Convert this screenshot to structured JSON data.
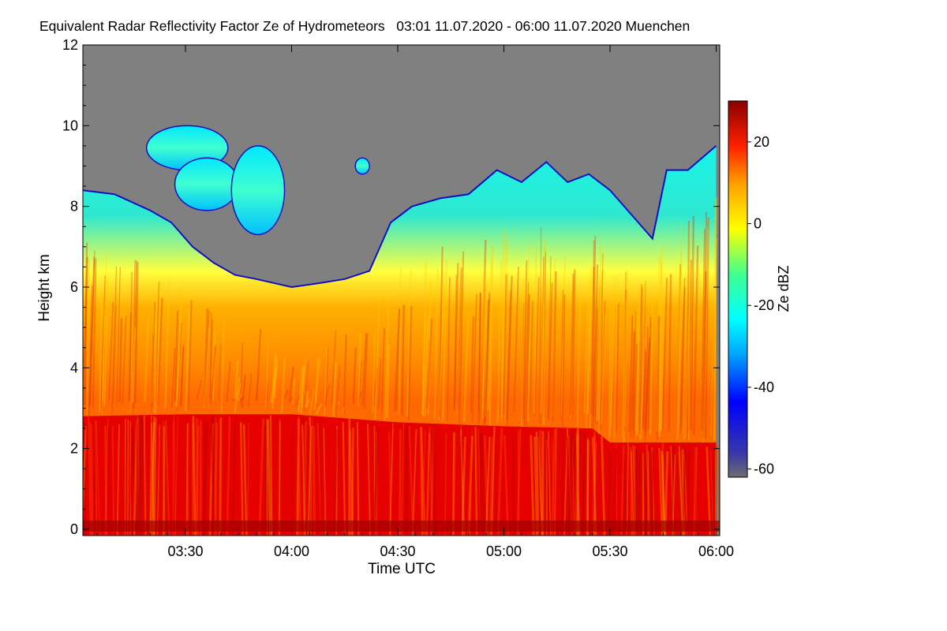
{
  "chart_data": {
    "type": "heatmap",
    "title": "Equivalent Radar Reflectivity Factor Ze of Hydrometeors   03:01 11.07.2020 - 06:00 11.07.2020 Muenchen",
    "xlabel": "Time UTC",
    "ylabel": "Height km",
    "x_range": [
      "03:01",
      "06:00"
    ],
    "xlim_minutes": [
      181,
      361
    ],
    "ylim": [
      0,
      12
    ],
    "x_ticks": [
      {
        "label": "03:30",
        "minutes": 210
      },
      {
        "label": "04:00",
        "minutes": 240
      },
      {
        "label": "04:30",
        "minutes": 270
      },
      {
        "label": "05:00",
        "minutes": 300
      },
      {
        "label": "05:30",
        "minutes": 330
      },
      {
        "label": "06:00",
        "minutes": 360
      }
    ],
    "y_ticks": [
      0,
      2,
      4,
      6,
      8,
      10,
      12
    ],
    "colorbar": {
      "label": "Ze dBZ",
      "range": [
        -62,
        30
      ],
      "ticks": [
        -60,
        -40,
        -20,
        0,
        20
      ]
    },
    "background_color": "#808080",
    "melting_layer_top_km": [
      {
        "t": 181,
        "h": 2.8
      },
      {
        "t": 210,
        "h": 2.85
      },
      {
        "t": 240,
        "h": 2.85
      },
      {
        "t": 270,
        "h": 2.65
      },
      {
        "t": 300,
        "h": 2.55
      },
      {
        "t": 325,
        "h": 2.5
      },
      {
        "t": 330,
        "h": 2.15
      },
      {
        "t": 360,
        "h": 2.15
      }
    ],
    "cloud_top_km": [
      {
        "t": 181,
        "h": 8.4
      },
      {
        "t": 190,
        "h": 8.3
      },
      {
        "t": 200,
        "h": 7.9
      },
      {
        "t": 206,
        "h": 7.6
      },
      {
        "t": 212,
        "h": 7.0
      },
      {
        "t": 218,
        "h": 6.6
      },
      {
        "t": 224,
        "h": 6.3
      },
      {
        "t": 230,
        "h": 6.2
      },
      {
        "t": 240,
        "h": 6.0
      },
      {
        "t": 248,
        "h": 6.1
      },
      {
        "t": 255,
        "h": 6.2
      },
      {
        "t": 262,
        "h": 6.4
      },
      {
        "t": 268,
        "h": 7.6
      },
      {
        "t": 274,
        "h": 8.0
      },
      {
        "t": 282,
        "h": 8.2
      },
      {
        "t": 290,
        "h": 8.3
      },
      {
        "t": 298,
        "h": 8.9
      },
      {
        "t": 305,
        "h": 8.6
      },
      {
        "t": 312,
        "h": 9.1
      },
      {
        "t": 318,
        "h": 8.6
      },
      {
        "t": 324,
        "h": 8.8
      },
      {
        "t": 330,
        "h": 8.4
      },
      {
        "t": 336,
        "h": 7.8
      },
      {
        "t": 342,
        "h": 7.2
      },
      {
        "t": 346,
        "h": 8.9
      },
      {
        "t": 352,
        "h": 8.9
      },
      {
        "t": 360,
        "h": 9.5
      }
    ],
    "upper_cloud_patches_km": [
      {
        "t0": 199,
        "t1": 222,
        "h0": 8.9,
        "h1": 10.0
      },
      {
        "t0": 207,
        "t1": 225,
        "h0": 7.9,
        "h1": 9.2
      },
      {
        "t0": 223,
        "t1": 238,
        "h0": 7.3,
        "h1": 9.5
      },
      {
        "t0": 258,
        "t1": 262,
        "h0": 8.8,
        "h1": 9.2
      }
    ]
  }
}
